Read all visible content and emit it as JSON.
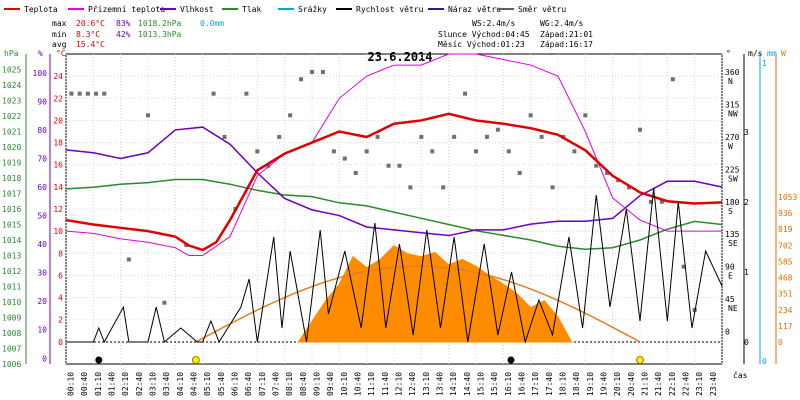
{
  "chart_data": {
    "type": "line",
    "title": "23.6.2014",
    "legend": [
      {
        "name": "Teplota",
        "color": "#e00000"
      },
      {
        "name": "Přízemní teplota",
        "color": "#e000e0"
      },
      {
        "name": "Vlhkost",
        "color": "#6a00c0"
      },
      {
        "name": "Tlak",
        "color": "#2a8a2a"
      },
      {
        "name": "Srážky",
        "color": "#00a8e0"
      },
      {
        "name": "Rychlost větru",
        "color": "#000000"
      },
      {
        "name": "Náraz větru",
        "color": "#2020a0"
      },
      {
        "name": "Směr větru",
        "color": "#606060"
      }
    ],
    "stats": {
      "max_label": "max",
      "min_label": "min",
      "avg_label": "avg",
      "max_temp": "20.6°C",
      "max_hum": "83%",
      "max_press": "1018.2hPa",
      "max_rain": "0.0mm",
      "min_temp": "8.3°C",
      "min_hum": "42%",
      "min_press": "1013.3hPa",
      "avg_temp": "15.4°C"
    },
    "info": {
      "ws": "WS:2.4m/s",
      "wg": "WG:2.4m/s",
      "sun": "Slunce Východ:04:45",
      "sunset": "Západ:21:01",
      "moon": "Měsíc  Východ:01:23",
      "moonset": "Západ:16:17"
    },
    "axis_units": {
      "hpa": "hPa",
      "pct": "%",
      "degc": "°C",
      "deg": "°",
      "ms": "m/s",
      "mm": "mm",
      "wm2": "W",
      "x": "čas"
    },
    "y_temp_ticks": [
      "0",
      "2",
      "4",
      "6",
      "8",
      "10",
      "12",
      "14",
      "16",
      "18",
      "20",
      "22",
      "24"
    ],
    "y_pct_ticks": [
      "0",
      "10",
      "20",
      "30",
      "40",
      "50",
      "60",
      "70",
      "80",
      "90",
      "100"
    ],
    "y_hpa_ticks": [
      "1006",
      "1007",
      "1008",
      "1009",
      "1010",
      "1011",
      "1012",
      "1013",
      "1014",
      "1015",
      "1016",
      "1017",
      "1018",
      "1019",
      "1020",
      "1021",
      "1022",
      "1023",
      "1024",
      "1025"
    ],
    "y_dir_ticks": [
      {
        "v": 360,
        "l": "360",
        "d": "N"
      },
      {
        "v": 315,
        "l": "315",
        "d": "NW"
      },
      {
        "v": 270,
        "l": "270",
        "d": "W"
      },
      {
        "v": 225,
        "l": "225",
        "d": "SW"
      },
      {
        "v": 180,
        "l": "180",
        "d": "S"
      },
      {
        "v": 135,
        "l": "135",
        "d": "SE"
      },
      {
        "v": 90,
        "l": "90",
        "d": "E"
      },
      {
        "v": 45,
        "l": "45",
        "d": "NE"
      },
      {
        "v": 0,
        "l": "0",
        "d": ""
      }
    ],
    "y_ms_ticks": [
      "0",
      "1",
      "2",
      "3"
    ],
    "y_mm_ticks": [
      "0",
      "1"
    ],
    "y_wm2_ticks": [
      "0",
      "117",
      "234",
      "351",
      "468",
      "585",
      "702",
      "819",
      "936",
      "1053"
    ],
    "x_ticks": [
      "00:10",
      "00:40",
      "01:10",
      "01:40",
      "02:10",
      "02:40",
      "03:10",
      "03:40",
      "04:10",
      "04:40",
      "05:10",
      "05:40",
      "06:10",
      "06:40",
      "07:10",
      "07:40",
      "08:10",
      "08:40",
      "09:10",
      "09:40",
      "10:10",
      "10:40",
      "11:10",
      "11:40",
      "12:10",
      "12:40",
      "13:10",
      "13:40",
      "14:10",
      "14:40",
      "15:10",
      "15:40",
      "16:10",
      "16:40",
      "17:10",
      "17:40",
      "18:10",
      "18:40",
      "19:10",
      "19:40",
      "20:10",
      "20:40",
      "21:10",
      "21:40",
      "22:10",
      "22:40",
      "23:10",
      "23:40"
    ],
    "temperature": {
      "x": [
        0,
        1,
        2,
        3,
        4,
        4.5,
        5,
        5.5,
        6,
        7,
        8,
        9,
        10,
        11,
        12,
        13,
        14,
        15,
        16,
        17,
        18,
        19,
        20,
        21,
        22,
        23,
        24
      ],
      "y": [
        11,
        10.6,
        10.3,
        10,
        9.5,
        8.7,
        8.3,
        9,
        11,
        15.5,
        17,
        18,
        19,
        18.5,
        19.7,
        20,
        20.6,
        20,
        19.7,
        19.3,
        18.7,
        17.3,
        15,
        13.5,
        12.7,
        12.5,
        12.6
      ]
    },
    "ground_temperature": {
      "x": [
        0,
        1,
        2,
        3,
        4,
        4.5,
        5,
        6,
        7,
        8,
        9,
        10,
        11,
        12,
        13,
        14,
        15,
        16,
        17,
        18,
        19,
        20,
        21,
        22,
        23,
        24
      ],
      "y": [
        10,
        9.8,
        9.3,
        9,
        8.5,
        7.8,
        7.8,
        9.5,
        15,
        17,
        18,
        22,
        24,
        25,
        25,
        26,
        26,
        25.5,
        25,
        24,
        19,
        13,
        11,
        10,
        10,
        10
      ]
    },
    "humidity": {
      "x": [
        0,
        1,
        2,
        3,
        4,
        5,
        6,
        7,
        8,
        9,
        10,
        11,
        12,
        13,
        14,
        15,
        16,
        17,
        18,
        19,
        20,
        21,
        22,
        23,
        24
      ],
      "y": [
        73,
        72,
        70,
        72,
        80,
        81,
        75,
        65,
        56,
        52,
        50,
        46,
        45,
        44,
        43,
        45,
        45,
        47,
        48,
        48,
        49,
        57,
        62,
        62,
        60
      ]
    },
    "pressure": {
      "x": [
        0,
        1,
        2,
        3,
        4,
        5,
        6,
        7,
        8,
        9,
        10,
        11,
        12,
        13,
        14,
        15,
        16,
        17,
        18,
        19,
        20,
        21,
        22,
        23,
        24
      ],
      "y": [
        1017.3,
        1017.4,
        1017.6,
        1017.7,
        1017.9,
        1017.9,
        1017.6,
        1017.2,
        1016.9,
        1016.8,
        1016.4,
        1016.2,
        1015.8,
        1015.4,
        1015,
        1014.6,
        1014.3,
        1014,
        1013.6,
        1013.4,
        1013.5,
        1014,
        1014.7,
        1015.2,
        1015
      ]
    },
    "wind_speed": {
      "x": [
        0,
        1,
        1.2,
        1.4,
        2.1,
        2.3,
        3,
        3.3,
        3.6,
        4.2,
        4.8,
        5,
        5.3,
        5.6,
        6.4,
        6.7,
        7,
        7.6,
        7.9,
        8.2,
        8.8,
        9.3,
        9.6,
        10.2,
        10.8,
        11.3,
        11.7,
        12.2,
        12.7,
        13.2,
        13.7,
        14.2,
        14.7,
        15.3,
        15.8,
        16.3,
        16.8,
        17.3,
        17.8,
        18.4,
        18.9,
        19.4,
        19.9,
        20.5,
        21,
        21.5,
        22,
        22.4,
        22.9,
        23.4,
        24
      ],
      "y": [
        0,
        0,
        0.2,
        0,
        0.5,
        0,
        0,
        0.5,
        0,
        0.2,
        0,
        0,
        0.3,
        0,
        0.5,
        0.9,
        0,
        1.5,
        0.2,
        1.3,
        0,
        1.6,
        0.4,
        1.3,
        0.2,
        1.7,
        0.2,
        1.4,
        0.1,
        1.6,
        0.2,
        1.5,
        0,
        1.4,
        0.1,
        1,
        0,
        0.6,
        0.1,
        1.5,
        0.2,
        2.1,
        0.5,
        1.9,
        0.3,
        2.2,
        0.3,
        2,
        0.2,
        1.3,
        0.8
      ]
    },
    "radiation": {
      "x": [
        8.5,
        9,
        9.5,
        10,
        10.5,
        11,
        11.5,
        12,
        12.5,
        13,
        13.5,
        14,
        14.5,
        15,
        15.5,
        16,
        16.5,
        17,
        17.5,
        18,
        18.5
      ],
      "y": [
        0,
        150,
        300,
        420,
        620,
        540,
        600,
        700,
        640,
        620,
        650,
        560,
        600,
        550,
        480,
        420,
        350,
        250,
        300,
        180,
        0
      ]
    },
    "sun_curve_peak": 550,
    "wind_direction": {
      "x": [
        0.2,
        0.5,
        0.8,
        1.1,
        1.4,
        2.3,
        3,
        3.6,
        4.4,
        5.4,
        5.8,
        6.2,
        6.6,
        7,
        7.4,
        7.8,
        8.2,
        8.6,
        9,
        9.4,
        9.8,
        10.2,
        10.6,
        11,
        11.4,
        11.8,
        12.2,
        12.6,
        13,
        13.4,
        13.8,
        14.2,
        14.6,
        15,
        15.4,
        15.8,
        16.2,
        16.6,
        17,
        17.4,
        17.8,
        18.2,
        18.6,
        19,
        19.4,
        19.8,
        20.2,
        20.6,
        21,
        21.4,
        21.8,
        22.2,
        22.6,
        23
      ],
      "y": [
        330,
        330,
        330,
        330,
        330,
        100,
        300,
        40,
        120,
        330,
        270,
        170,
        330,
        250,
        230,
        270,
        300,
        350,
        360,
        360,
        250,
        240,
        220,
        250,
        270,
        230,
        230,
        200,
        270,
        250,
        200,
        270,
        330,
        250,
        270,
        280,
        250,
        220,
        300,
        270,
        200,
        270,
        250,
        300,
        230,
        220,
        210,
        200,
        280,
        180,
        180,
        350,
        90,
        30
      ]
    },
    "markers": [
      {
        "x": 1.2,
        "type": "moon"
      },
      {
        "x": 4.75,
        "type": "sun"
      },
      {
        "x": 16.28,
        "type": "moon"
      },
      {
        "x": 21.0,
        "type": "sun"
      }
    ]
  }
}
